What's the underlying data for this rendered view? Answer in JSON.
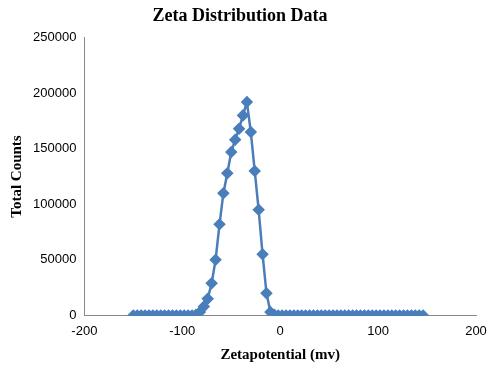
{
  "chart_data": {
    "type": "line",
    "title": "Zeta Distribution Data",
    "x_label": "Zetapotential (mv)",
    "y_label": "Total Counts",
    "x": [
      -150,
      -146,
      -142,
      -138,
      -134,
      -130,
      -126,
      -122,
      -118,
      -114,
      -110,
      -106,
      -102,
      -98,
      -94,
      -90,
      -86,
      -82,
      -78,
      -74,
      -70,
      -66,
      -62,
      -58,
      -54,
      -50,
      -46,
      -42,
      -38,
      -34,
      -30,
      -26,
      -22,
      -18,
      -14,
      -10,
      -6,
      -2,
      2,
      6,
      10,
      14,
      18,
      22,
      26,
      30,
      34,
      38,
      42,
      46,
      50,
      54,
      58,
      62,
      66,
      70,
      74,
      78,
      82,
      86,
      90,
      94,
      98,
      102,
      106,
      110,
      114,
      118,
      122,
      126,
      130,
      134,
      138,
      142,
      146
    ],
    "values": [
      0,
      0,
      0,
      0,
      0,
      0,
      0,
      0,
      0,
      0,
      0,
      0,
      0,
      0,
      0,
      0,
      500,
      3000,
      8000,
      15000,
      29000,
      50000,
      82000,
      110000,
      128000,
      147000,
      158000,
      168000,
      180000,
      192000,
      165000,
      130000,
      95000,
      55000,
      20000,
      3000,
      500,
      0,
      0,
      0,
      0,
      0,
      0,
      0,
      0,
      0,
      0,
      0,
      0,
      0,
      0,
      0,
      0,
      0,
      0,
      0,
      0,
      0,
      0,
      0,
      0,
      0,
      0,
      0,
      0,
      0,
      0,
      0,
      0,
      0,
      0,
      0,
      0,
      0,
      0
    ],
    "color": "#4a7ebb",
    "marker": "diamond",
    "xlim": [
      -200,
      200
    ],
    "xticks": [
      -200,
      -100,
      0,
      100,
      200
    ],
    "ylim": [
      0,
      250000
    ],
    "yticks": [
      0,
      50000,
      100000,
      150000,
      200000,
      250000
    ],
    "grid": false
  }
}
